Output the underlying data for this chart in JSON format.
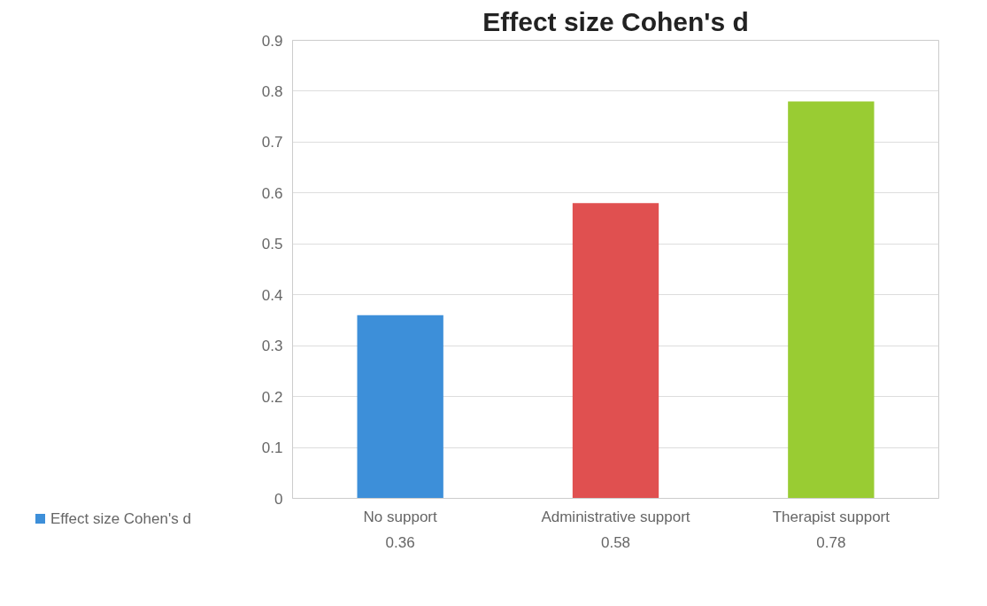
{
  "chart_data": {
    "type": "bar",
    "title": "Effect size Cohen's d",
    "categories": [
      "No support",
      "Administrative support",
      "Therapist support"
    ],
    "series": [
      {
        "name": "Effect size Cohen's d",
        "color": "#3d8fd9",
        "colors": [
          "#3d8fd9",
          "#e05050",
          "#99cc33"
        ],
        "values": [
          0.36,
          0.58,
          0.78
        ]
      }
    ],
    "ylim": [
      0,
      0.9
    ],
    "yticks": [
      0,
      0.1,
      0.2,
      0.3,
      0.4,
      0.5,
      0.6,
      0.7,
      0.8,
      0.9
    ],
    "grid": "y",
    "legend": "bottom",
    "data_labels": true
  }
}
